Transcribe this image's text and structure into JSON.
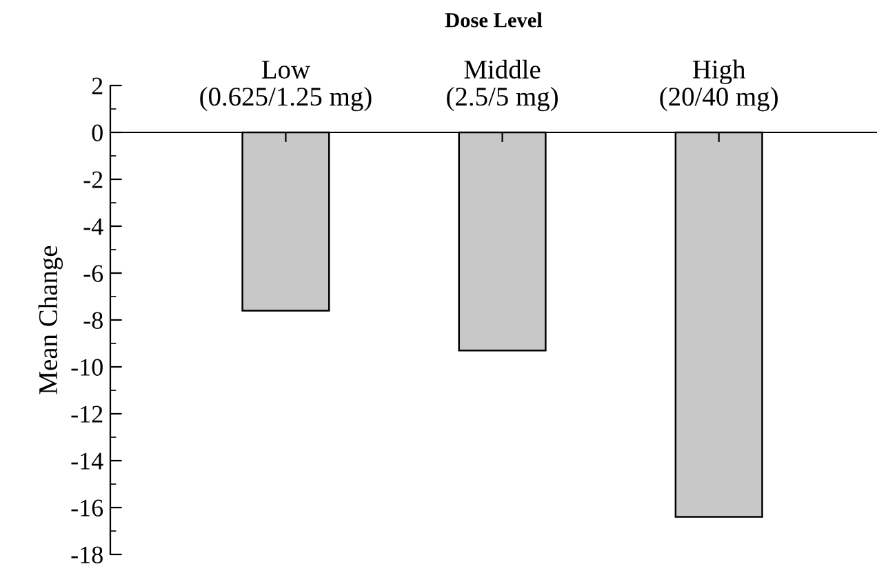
{
  "chart_data": {
    "type": "bar",
    "xlabel": "Dose Level",
    "ylabel": "Mean Change",
    "categories": [
      "Low\n(0.625/1.25 mg)",
      "Middle\n(2.5/5 mg)",
      "High\n(20/40 mg)"
    ],
    "values": [
      -7.6,
      -9.3,
      -16.4
    ],
    "color": "#c8c8c8",
    "ylim": [
      -18,
      2
    ],
    "yticks": [
      2,
      0,
      -2,
      -4,
      -6,
      -8,
      -10,
      -12,
      -14,
      -16,
      -18
    ],
    "grid": false
  }
}
